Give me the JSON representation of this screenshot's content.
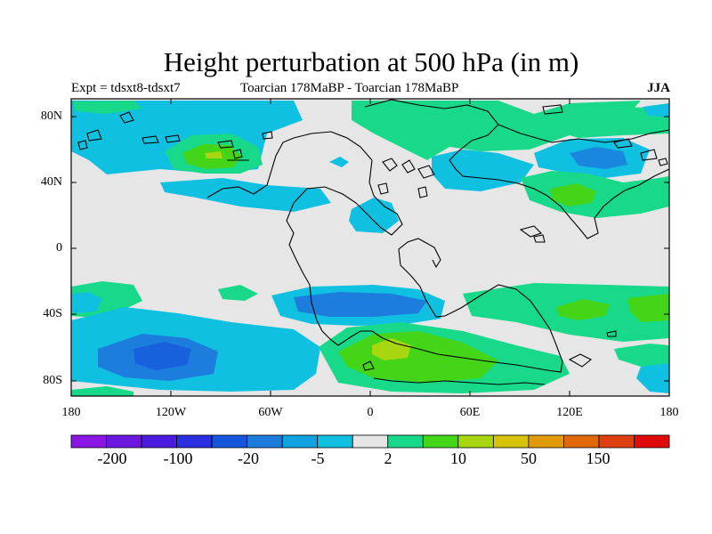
{
  "title": "Height perturbation at 500 hPa (in m)",
  "experiment_label": "Expt = tdsxt8-tdsxt7",
  "case_label": "Toarcian 178MaBP - Toarcian 178MaBP",
  "season_label": "JJA",
  "lat_ticks": [
    "80N",
    "40N",
    "0",
    "40S",
    "80S"
  ],
  "lon_ticks": [
    "180",
    "120W",
    "60W",
    "0",
    "60E",
    "120E",
    "180"
  ],
  "colorbar_labels": [
    "-200",
    "-100",
    "-20",
    "-5",
    "2",
    "10",
    "50",
    "150"
  ],
  "colorbar_colors": [
    "#8a16e4",
    "#6b17de",
    "#4a1ade",
    "#2a2ee0",
    "#1655dd",
    "#1c7ddd",
    "#12a2e0",
    "#10c0e0",
    "#e6e6e6",
    "#18d98a",
    "#44d418",
    "#a8d610",
    "#d7c20e",
    "#e09a0c",
    "#e0680a",
    "#e04010",
    "#e00a0a"
  ],
  "colors": {
    "land_background": "#e6e6e6",
    "coastline": "#000000"
  }
}
